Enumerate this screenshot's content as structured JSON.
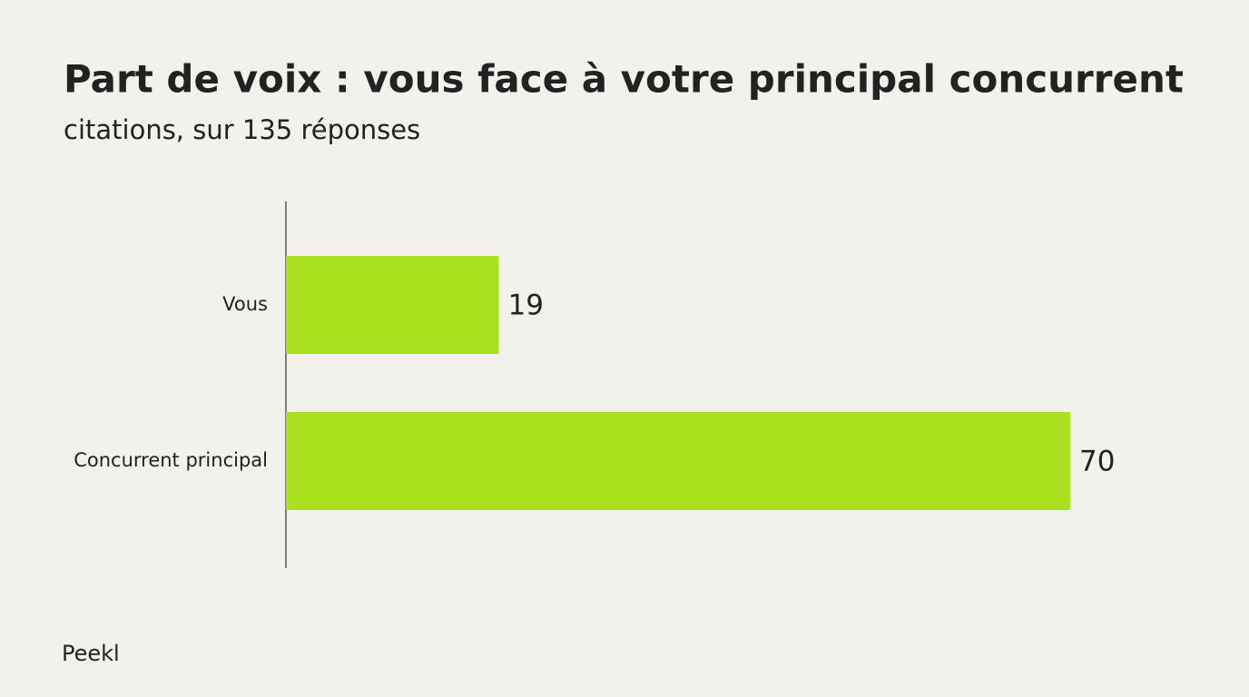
{
  "chart_data": {
    "type": "barh",
    "title": "Part de voix : vous face à votre principal concurrent",
    "subtitle": "citations, sur 135 réponses",
    "categories": [
      "Vous",
      "Concurrent principal"
    ],
    "values": [
      19,
      70
    ],
    "color": "#aae11e"
  },
  "footer": {
    "brand": "Peekl"
  }
}
